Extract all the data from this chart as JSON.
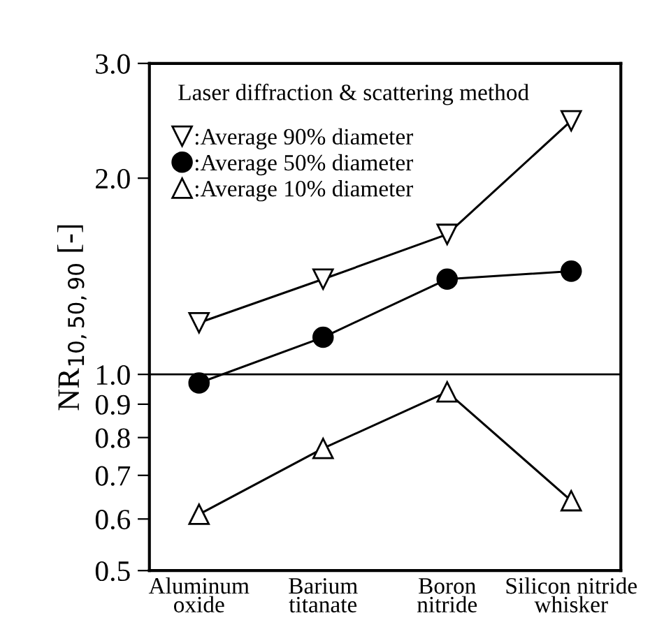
{
  "chart_data": {
    "type": "line",
    "ylabel": "NR$_{10,50,90}$ [-]",
    "categories": [
      "Aluminum\noxide",
      "Barium\ntitanate",
      "Boron\nnitride",
      "Silicon nitride\nwhisker"
    ],
    "series": [
      {
        "name": ":Average 90% diameter",
        "color": "#000000",
        "marker": "triangle_down",
        "values": [
          1.2,
          1.4,
          1.64,
          2.45
        ]
      },
      {
        "name": ":Average 50% diameter",
        "color": "#000000",
        "marker": "circle",
        "values": [
          0.97,
          1.14,
          1.4,
          1.44
        ]
      },
      {
        "name": ":Average 10% diameter",
        "color": "#000000",
        "marker": "triangle",
        "values": [
          0.61,
          0.77,
          0.94,
          0.64
        ]
      }
    ],
    "ylim": [
      0.5,
      3.0
    ],
    "yticks": [
      {
        "value": 0.5,
        "label": "0.5"
      },
      {
        "value": 0.6,
        "label": "0.6"
      },
      {
        "value": 0.7,
        "label": "0.7"
      },
      {
        "value": 0.8,
        "label": "0.8"
      },
      {
        "value": 0.9,
        "label": "0.9"
      },
      {
        "value": 1.0,
        "label": "1.0"
      },
      {
        "value": 2.0,
        "label": "2.0"
      },
      {
        "value": 3.0,
        "label": "3.0"
      }
    ],
    "ref_lines": [
      {
        "axis": "y",
        "value": 1.0,
        "color": "#000000"
      }
    ],
    "annotations": [
      "Laser diffraction & scattering method"
    ],
    "legend": "top left",
    "log": true,
    "grid": false
  }
}
